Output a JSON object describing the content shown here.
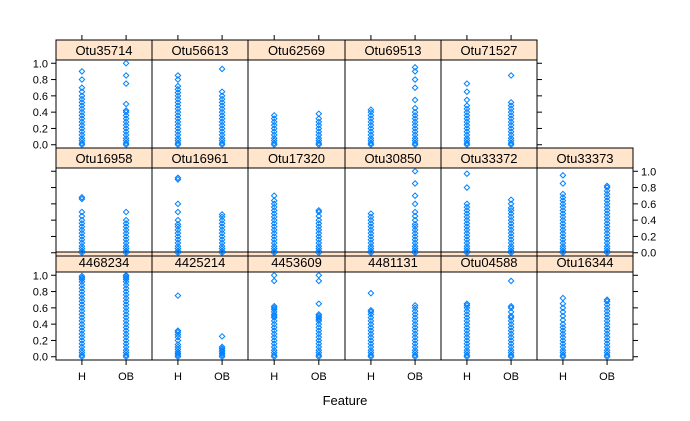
{
  "chart_data": {
    "type": "scatter",
    "layout": "lattice-strip-plot 6 columns x 3 rows",
    "xlabel": "Feature",
    "ylabel": "",
    "categories": [
      "H",
      "OB"
    ],
    "ylim": [
      -0.04,
      1.04
    ],
    "yticks": [
      0.0,
      0.2,
      0.4,
      0.6,
      0.8,
      1.0
    ],
    "ytick_labels": [
      "0.0",
      "0.2",
      "0.4",
      "0.6",
      "0.8",
      "1.0"
    ],
    "grid": false,
    "point_color": "#0080ff",
    "strip_color": "#ffe5cc",
    "panel_border_color": "#000000",
    "marker": "open-diamond",
    "panels": [
      {
        "name": "4468234",
        "row": 3,
        "col": 1,
        "H": [
          0,
          0.02,
          0.05,
          0.08,
          0.12,
          0.16,
          0.2,
          0.24,
          0.28,
          0.32,
          0.36,
          0.4,
          0.44,
          0.48,
          0.52,
          0.56,
          0.6,
          0.64,
          0.68,
          0.72,
          0.76,
          0.8,
          0.84,
          0.88,
          0.92,
          0.95,
          0.97,
          0.99
        ],
        "OB": [
          0,
          0.02,
          0.05,
          0.08,
          0.12,
          0.16,
          0.2,
          0.24,
          0.28,
          0.32,
          0.36,
          0.4,
          0.44,
          0.48,
          0.52,
          0.56,
          0.6,
          0.64,
          0.68,
          0.72,
          0.76,
          0.8,
          0.84,
          0.88,
          0.92,
          0.95,
          0.97,
          0.99,
          1.0
        ]
      },
      {
        "name": "4425214",
        "row": 3,
        "col": 2,
        "H": [
          0,
          0.02,
          0.04,
          0.06,
          0.09,
          0.12,
          0.15,
          0.2,
          0.24,
          0.27,
          0.3,
          0.32,
          0.75
        ],
        "OB": [
          0,
          0.02,
          0.04,
          0.06,
          0.08,
          0.1,
          0.12,
          0.25
        ]
      },
      {
        "name": "4453609",
        "row": 3,
        "col": 3,
        "H": [
          0,
          0.02,
          0.05,
          0.08,
          0.12,
          0.16,
          0.2,
          0.24,
          0.28,
          0.32,
          0.36,
          0.4,
          0.44,
          0.48,
          0.5,
          0.52,
          0.55,
          0.58,
          0.6,
          0.62,
          0.93,
          1.0
        ],
        "OB": [
          0,
          0.02,
          0.05,
          0.08,
          0.12,
          0.16,
          0.2,
          0.24,
          0.28,
          0.32,
          0.36,
          0.4,
          0.44,
          0.46,
          0.48,
          0.5,
          0.52,
          0.65,
          0.93,
          1.0
        ]
      },
      {
        "name": "4481131",
        "row": 3,
        "col": 4,
        "H": [
          0,
          0.02,
          0.05,
          0.08,
          0.12,
          0.16,
          0.2,
          0.24,
          0.28,
          0.32,
          0.36,
          0.4,
          0.44,
          0.48,
          0.52,
          0.55,
          0.57,
          0.78
        ],
        "OB": [
          0,
          0.02,
          0.05,
          0.08,
          0.12,
          0.16,
          0.2,
          0.24,
          0.28,
          0.32,
          0.36,
          0.4,
          0.44,
          0.48,
          0.52,
          0.56,
          0.6,
          0.63
        ]
      },
      {
        "name": "Otu04588",
        "row": 3,
        "col": 5,
        "H": [
          0,
          0.02,
          0.05,
          0.08,
          0.12,
          0.16,
          0.2,
          0.24,
          0.28,
          0.32,
          0.36,
          0.4,
          0.44,
          0.48,
          0.52,
          0.56,
          0.6,
          0.63,
          0.65
        ],
        "OB": [
          0,
          0.02,
          0.05,
          0.08,
          0.12,
          0.16,
          0.2,
          0.24,
          0.28,
          0.32,
          0.36,
          0.4,
          0.44,
          0.48,
          0.5,
          0.55,
          0.6,
          0.62,
          0.93
        ]
      },
      {
        "name": "Otu16344",
        "row": 3,
        "col": 6,
        "H": [
          0,
          0.02,
          0.05,
          0.08,
          0.12,
          0.16,
          0.2,
          0.24,
          0.28,
          0.32,
          0.36,
          0.4,
          0.45,
          0.5,
          0.55,
          0.6,
          0.65,
          0.72
        ],
        "OB": [
          0,
          0.02,
          0.05,
          0.08,
          0.12,
          0.16,
          0.2,
          0.24,
          0.28,
          0.32,
          0.36,
          0.4,
          0.44,
          0.48,
          0.52,
          0.56,
          0.6,
          0.64,
          0.68,
          0.7
        ]
      },
      {
        "name": "Otu16958",
        "row": 2,
        "col": 1,
        "H": [
          0,
          0.02,
          0.05,
          0.08,
          0.12,
          0.16,
          0.2,
          0.24,
          0.28,
          0.32,
          0.36,
          0.4,
          0.45,
          0.5,
          0.66,
          0.68
        ],
        "OB": [
          0,
          0.02,
          0.05,
          0.08,
          0.12,
          0.16,
          0.2,
          0.24,
          0.28,
          0.32,
          0.36,
          0.4,
          0.5
        ]
      },
      {
        "name": "Otu16961",
        "row": 2,
        "col": 2,
        "H": [
          0,
          0.02,
          0.05,
          0.08,
          0.12,
          0.16,
          0.2,
          0.24,
          0.28,
          0.32,
          0.35,
          0.4,
          0.5,
          0.6,
          0.9,
          0.92
        ],
        "OB": [
          0,
          0.02,
          0.05,
          0.08,
          0.12,
          0.16,
          0.2,
          0.24,
          0.28,
          0.32,
          0.36,
          0.4,
          0.44,
          0.47
        ]
      },
      {
        "name": "Otu17320",
        "row": 2,
        "col": 3,
        "H": [
          0,
          0.02,
          0.05,
          0.08,
          0.12,
          0.16,
          0.2,
          0.24,
          0.28,
          0.32,
          0.36,
          0.4,
          0.44,
          0.48,
          0.52,
          0.56,
          0.6,
          0.64,
          0.7
        ],
        "OB": [
          0,
          0.02,
          0.05,
          0.08,
          0.12,
          0.16,
          0.2,
          0.24,
          0.28,
          0.32,
          0.36,
          0.4,
          0.45,
          0.5,
          0.52
        ]
      },
      {
        "name": "Otu30850",
        "row": 2,
        "col": 4,
        "H": [
          0,
          0.02,
          0.05,
          0.08,
          0.12,
          0.16,
          0.2,
          0.24,
          0.28,
          0.32,
          0.36,
          0.4,
          0.44,
          0.48
        ],
        "OB": [
          0,
          0.02,
          0.05,
          0.08,
          0.12,
          0.16,
          0.2,
          0.24,
          0.28,
          0.32,
          0.35,
          0.4,
          0.45,
          0.5,
          0.6,
          0.7,
          0.85,
          1.0
        ]
      },
      {
        "name": "Otu33372",
        "row": 2,
        "col": 5,
        "H": [
          0,
          0.02,
          0.05,
          0.08,
          0.12,
          0.16,
          0.2,
          0.24,
          0.28,
          0.32,
          0.36,
          0.4,
          0.44,
          0.48,
          0.52,
          0.56,
          0.6,
          0.8,
          0.97
        ],
        "OB": [
          0,
          0.02,
          0.05,
          0.08,
          0.12,
          0.16,
          0.2,
          0.24,
          0.28,
          0.32,
          0.36,
          0.4,
          0.44,
          0.48,
          0.52,
          0.55,
          0.6,
          0.65
        ]
      },
      {
        "name": "Otu33373",
        "row": 2,
        "col": 6,
        "H": [
          0,
          0.02,
          0.05,
          0.08,
          0.12,
          0.16,
          0.2,
          0.24,
          0.28,
          0.32,
          0.36,
          0.4,
          0.44,
          0.48,
          0.52,
          0.56,
          0.6,
          0.64,
          0.68,
          0.72,
          0.85,
          0.95
        ],
        "OB": [
          0,
          0.02,
          0.05,
          0.08,
          0.12,
          0.16,
          0.2,
          0.24,
          0.28,
          0.32,
          0.36,
          0.4,
          0.44,
          0.48,
          0.52,
          0.56,
          0.6,
          0.64,
          0.68,
          0.72,
          0.76,
          0.8,
          0.82
        ]
      },
      {
        "name": "Otu35714",
        "row": 1,
        "col": 1,
        "H": [
          0,
          0.02,
          0.05,
          0.08,
          0.12,
          0.16,
          0.2,
          0.24,
          0.28,
          0.32,
          0.36,
          0.4,
          0.44,
          0.48,
          0.52,
          0.56,
          0.6,
          0.65,
          0.7,
          0.8,
          0.9
        ],
        "OB": [
          0,
          0.02,
          0.05,
          0.08,
          0.12,
          0.16,
          0.2,
          0.24,
          0.28,
          0.32,
          0.36,
          0.4,
          0.42,
          0.5,
          0.75,
          0.85,
          1.0
        ]
      },
      {
        "name": "Otu56613",
        "row": 1,
        "col": 2,
        "H": [
          0,
          0.02,
          0.05,
          0.08,
          0.12,
          0.16,
          0.2,
          0.24,
          0.28,
          0.32,
          0.36,
          0.4,
          0.44,
          0.48,
          0.52,
          0.56,
          0.6,
          0.64,
          0.68,
          0.72,
          0.8,
          0.85
        ],
        "OB": [
          0,
          0.02,
          0.05,
          0.08,
          0.12,
          0.16,
          0.2,
          0.24,
          0.28,
          0.32,
          0.36,
          0.4,
          0.44,
          0.48,
          0.52,
          0.56,
          0.6,
          0.65,
          0.93
        ]
      },
      {
        "name": "Otu62569",
        "row": 1,
        "col": 3,
        "H": [
          0,
          0.02,
          0.05,
          0.08,
          0.12,
          0.16,
          0.2,
          0.24,
          0.28,
          0.32,
          0.36
        ],
        "OB": [
          0,
          0.02,
          0.05,
          0.08,
          0.12,
          0.16,
          0.2,
          0.24,
          0.28,
          0.32,
          0.38
        ]
      },
      {
        "name": "Otu69513",
        "row": 1,
        "col": 4,
        "H": [
          0,
          0.02,
          0.05,
          0.08,
          0.12,
          0.16,
          0.2,
          0.24,
          0.28,
          0.32,
          0.36,
          0.4,
          0.43
        ],
        "OB": [
          0,
          0.02,
          0.05,
          0.08,
          0.12,
          0.16,
          0.2,
          0.24,
          0.28,
          0.32,
          0.36,
          0.4,
          0.45,
          0.55,
          0.7,
          0.8,
          0.9,
          0.95
        ]
      },
      {
        "name": "Otu71527",
        "row": 1,
        "col": 5,
        "H": [
          0,
          0.02,
          0.05,
          0.08,
          0.12,
          0.16,
          0.2,
          0.24,
          0.28,
          0.32,
          0.36,
          0.4,
          0.44,
          0.48,
          0.55,
          0.65,
          0.75
        ],
        "OB": [
          0,
          0.02,
          0.05,
          0.08,
          0.12,
          0.16,
          0.2,
          0.24,
          0.28,
          0.32,
          0.36,
          0.4,
          0.44,
          0.48,
          0.52,
          0.85
        ]
      }
    ]
  }
}
